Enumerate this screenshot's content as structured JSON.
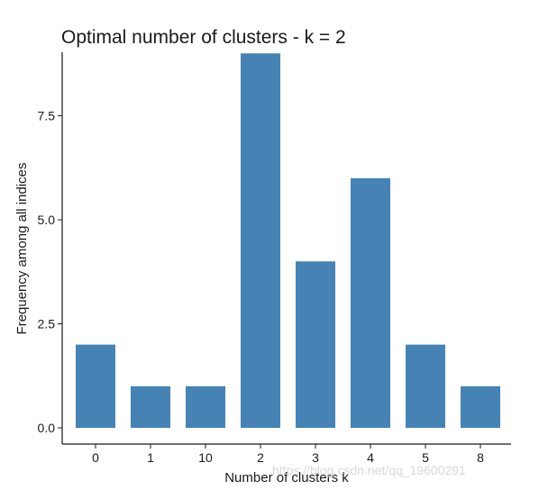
{
  "chart_data": {
    "type": "bar",
    "title": "Optimal number of clusters - k = 2",
    "xlabel": "Number of clusters k",
    "ylabel": "Frequency among all indices",
    "categories": [
      "0",
      "1",
      "10",
      "2",
      "3",
      "4",
      "5",
      "8"
    ],
    "values": [
      2,
      1,
      1,
      9,
      4,
      6,
      2,
      1
    ],
    "ylim": [
      0,
      9.2
    ],
    "yticks": [
      "0.0",
      "2.5",
      "5.0",
      "7.5"
    ],
    "bar_color": "#4682b4",
    "grid": false,
    "legend": "none"
  },
  "watermark": "https://blog.csdn.net/qq_19600291"
}
